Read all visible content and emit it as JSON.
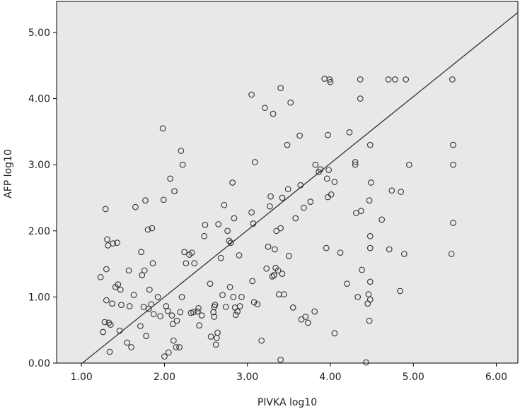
{
  "chart_data": {
    "type": "scatter",
    "xlabel": "PIVKA log10",
    "ylabel": "AFP log10",
    "xlim": [
      0.7,
      6.26
    ],
    "ylim": [
      0.0,
      5.47
    ],
    "x_ticks": [
      1.0,
      2.0,
      3.0,
      4.0,
      5.0,
      6.0
    ],
    "y_ticks": [
      0.0,
      1.0,
      2.0,
      3.0,
      4.0,
      5.0
    ],
    "x_tick_labels": [
      "1.00",
      "2.00",
      "3.00",
      "4.00",
      "5.00",
      "6.00"
    ],
    "y_tick_labels": [
      "0.00",
      "1.00",
      "2.00",
      "3.00",
      "4.00",
      "5.00"
    ],
    "grid": false,
    "legend": "none",
    "colors": {
      "background": "#e8e8e8",
      "points": "#333333",
      "line": "#333333"
    },
    "fit_line": {
      "intercept": -1.02,
      "slope": 1.01
    },
    "series": [
      {
        "values": [
          [
            1.23,
            1.3
          ],
          [
            1.26,
            0.47
          ],
          [
            1.28,
            0.62
          ],
          [
            1.29,
            2.33
          ],
          [
            1.3,
            1.42
          ],
          [
            1.3,
            0.95
          ],
          [
            1.31,
            1.87
          ],
          [
            1.32,
            1.78
          ],
          [
            1.33,
            0.61
          ],
          [
            1.34,
            0.17
          ],
          [
            1.35,
            0.58
          ],
          [
            1.37,
            0.9
          ],
          [
            1.38,
            1.81
          ],
          [
            1.41,
            1.15
          ],
          [
            1.43,
            1.82
          ],
          [
            1.44,
            1.19
          ],
          [
            1.46,
            0.49
          ],
          [
            1.47,
            1.11
          ],
          [
            1.48,
            0.88
          ],
          [
            1.55,
            0.31
          ],
          [
            1.57,
            1.4
          ],
          [
            1.58,
            0.86
          ],
          [
            1.6,
            0.24
          ],
          [
            1.63,
            1.03
          ],
          [
            1.65,
            2.36
          ],
          [
            1.71,
            0.56
          ],
          [
            1.72,
            1.68
          ],
          [
            1.73,
            1.33
          ],
          [
            1.75,
            0.85
          ],
          [
            1.76,
            1.4
          ],
          [
            1.77,
            2.46
          ],
          [
            1.78,
            0.41
          ],
          [
            1.8,
            2.02
          ],
          [
            1.81,
            0.82
          ],
          [
            1.82,
            1.11
          ],
          [
            1.84,
            0.89
          ],
          [
            1.85,
            2.04
          ],
          [
            1.86,
            1.51
          ],
          [
            1.87,
            0.74
          ],
          [
            1.92,
            1.0
          ],
          [
            1.95,
            0.71
          ],
          [
            1.98,
            3.55
          ],
          [
            1.99,
            2.47
          ],
          [
            2.0,
            0.1
          ],
          [
            2.02,
            0.86
          ],
          [
            2.04,
            0.79
          ],
          [
            2.05,
            0.16
          ],
          [
            2.07,
            2.79
          ],
          [
            2.09,
            0.72
          ],
          [
            2.1,
            0.59
          ],
          [
            2.11,
            0.34
          ],
          [
            2.12,
            2.6
          ],
          [
            2.14,
            0.24
          ],
          [
            2.15,
            0.64
          ],
          [
            2.18,
            0.24
          ],
          [
            2.19,
            0.77
          ],
          [
            2.2,
            3.21
          ],
          [
            2.21,
            1.0
          ],
          [
            2.22,
            3.0
          ],
          [
            2.24,
            1.68
          ],
          [
            2.26,
            1.51
          ],
          [
            2.3,
            1.64
          ],
          [
            2.32,
            0.76
          ],
          [
            2.33,
            1.67
          ],
          [
            2.35,
            0.77
          ],
          [
            2.36,
            1.51
          ],
          [
            2.4,
            0.78
          ],
          [
            2.41,
            0.83
          ],
          [
            2.42,
            0.57
          ],
          [
            2.45,
            0.72
          ],
          [
            2.48,
            1.92
          ],
          [
            2.49,
            2.09
          ],
          [
            2.55,
            1.2
          ],
          [
            2.56,
            0.4
          ],
          [
            2.59,
            0.77
          ],
          [
            2.6,
            0.85
          ],
          [
            2.6,
            0.7
          ],
          [
            2.61,
            0.88
          ],
          [
            2.62,
            0.28
          ],
          [
            2.63,
            0.38
          ],
          [
            2.64,
            0.46
          ],
          [
            2.65,
            2.1
          ],
          [
            2.68,
            1.59
          ],
          [
            2.7,
            1.03
          ],
          [
            2.72,
            2.39
          ],
          [
            2.74,
            0.85
          ],
          [
            2.76,
            2.0
          ],
          [
            2.78,
            1.85
          ],
          [
            2.79,
            1.15
          ],
          [
            2.8,
            1.82
          ],
          [
            2.82,
            2.73
          ],
          [
            2.83,
            1.0
          ],
          [
            2.84,
            2.19
          ],
          [
            2.85,
            0.84
          ],
          [
            2.86,
            0.73
          ],
          [
            2.88,
            0.78
          ],
          [
            2.9,
            1.63
          ],
          [
            2.91,
            0.86
          ],
          [
            2.93,
            1.0
          ],
          [
            3.05,
            2.28
          ],
          [
            3.05,
            4.06
          ],
          [
            3.06,
            1.24
          ],
          [
            3.07,
            2.11
          ],
          [
            3.08,
            0.92
          ],
          [
            3.09,
            3.04
          ],
          [
            3.12,
            0.89
          ],
          [
            3.17,
            0.34
          ],
          [
            3.21,
            3.86
          ],
          [
            3.23,
            1.43
          ],
          [
            3.25,
            1.76
          ],
          [
            3.27,
            2.37
          ],
          [
            3.28,
            2.52
          ],
          [
            3.3,
            1.31
          ],
          [
            3.31,
            3.77
          ],
          [
            3.32,
            1.33
          ],
          [
            3.33,
            1.72
          ],
          [
            3.34,
            1.44
          ],
          [
            3.35,
            2.0
          ],
          [
            3.37,
            1.4
          ],
          [
            3.38,
            1.04
          ],
          [
            3.4,
            2.04
          ],
          [
            3.4,
            4.16
          ],
          [
            3.4,
            0.05
          ],
          [
            3.42,
            2.5
          ],
          [
            3.42,
            1.35
          ],
          [
            3.44,
            1.04
          ],
          [
            3.48,
            3.3
          ],
          [
            3.49,
            2.63
          ],
          [
            3.5,
            1.62
          ],
          [
            3.52,
            3.94
          ],
          [
            3.55,
            0.84
          ],
          [
            3.58,
            2.19
          ],
          [
            3.63,
            3.44
          ],
          [
            3.64,
            2.69
          ],
          [
            3.65,
            0.66
          ],
          [
            3.68,
            2.35
          ],
          [
            3.7,
            0.7
          ],
          [
            3.73,
            0.61
          ],
          [
            3.76,
            2.44
          ],
          [
            3.81,
            0.78
          ],
          [
            3.82,
            3.0
          ],
          [
            3.86,
            2.89
          ],
          [
            3.88,
            2.93
          ],
          [
            3.93,
            4.3
          ],
          [
            3.95,
            1.74
          ],
          [
            3.96,
            2.79
          ],
          [
            3.97,
            2.51
          ],
          [
            3.97,
            3.45
          ],
          [
            3.98,
            2.92
          ],
          [
            3.99,
            4.29
          ],
          [
            4.0,
            4.25
          ],
          [
            4.01,
            2.55
          ],
          [
            4.05,
            0.45
          ],
          [
            4.05,
            2.74
          ],
          [
            4.12,
            1.67
          ],
          [
            4.2,
            1.2
          ],
          [
            4.23,
            3.49
          ],
          [
            4.3,
            3.04
          ],
          [
            4.3,
            3.0
          ],
          [
            4.31,
            2.27
          ],
          [
            4.33,
            1.0
          ],
          [
            4.36,
            4.29
          ],
          [
            4.36,
            4.0
          ],
          [
            4.37,
            2.3
          ],
          [
            4.38,
            1.41
          ],
          [
            4.43,
            0.01
          ],
          [
            4.45,
            0.9
          ],
          [
            4.46,
            1.04
          ],
          [
            4.47,
            2.46
          ],
          [
            4.47,
            0.64
          ],
          [
            4.48,
            1.74
          ],
          [
            4.48,
            1.92
          ],
          [
            4.48,
            3.3
          ],
          [
            4.48,
            1.23
          ],
          [
            4.48,
            0.96
          ],
          [
            4.49,
            2.73
          ],
          [
            4.62,
            2.17
          ],
          [
            4.7,
            4.29
          ],
          [
            4.71,
            1.72
          ],
          [
            4.74,
            2.61
          ],
          [
            4.78,
            4.29
          ],
          [
            4.84,
            1.09
          ],
          [
            4.85,
            2.59
          ],
          [
            4.89,
            1.65
          ],
          [
            4.91,
            4.29
          ],
          [
            4.95,
            3.0
          ],
          [
            5.46,
            1.65
          ],
          [
            5.47,
            4.29
          ],
          [
            5.48,
            3.3
          ],
          [
            5.48,
            3.0
          ],
          [
            5.48,
            2.12
          ]
        ]
      }
    ]
  }
}
